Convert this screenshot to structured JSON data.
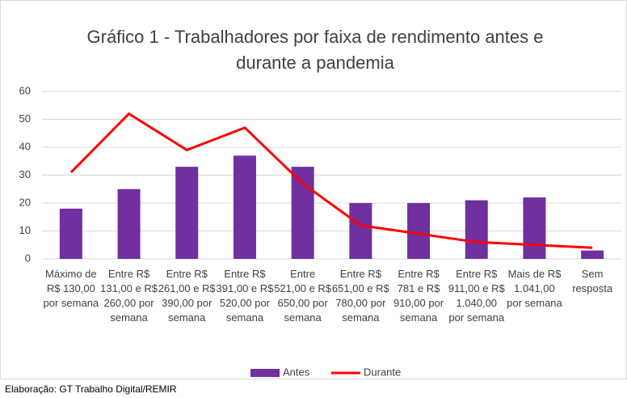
{
  "chart_data": {
    "type": "bar-line",
    "title": "Gráfico 1 - Trabalhadores por faixa de rendimento antes e durante a pandemia",
    "categories": [
      "Máximo de R$ 130,00 por semana",
      "Entre R$ 131,00 e R$ 260,00 por semana",
      "Entre R$ 261,00 e R$ 390,00 por semana",
      "Entre R$ 391,00 e R$ 520,00 por semana",
      "Entre 521,00 e R$ 650,00 por semana",
      "Entre R$ 651,00 e R$ 780,00 por semana",
      "Entre R$ 781 e R$ 910,00 por semana",
      "Entre R$ 911,00 e R$ 1.040,00 por semana",
      "Mais de R$ 1.041,00 por semana",
      "Sem resposta"
    ],
    "series": [
      {
        "name": "Antes",
        "type": "bar",
        "color": "#7030a0",
        "values": [
          18,
          25,
          33,
          37,
          33,
          20,
          20,
          21,
          22,
          3
        ]
      },
      {
        "name": "Durante",
        "type": "line",
        "color": "#ff0000",
        "values": [
          31,
          52,
          39,
          47,
          27,
          12,
          9,
          6,
          5,
          4
        ]
      }
    ],
    "ylim": [
      0,
      60
    ],
    "yticks": [
      0,
      10,
      20,
      30,
      40,
      50,
      60
    ],
    "grid": true,
    "legend": "bottom",
    "source": "Elaboração: GT Trabalho Digital/REMIR"
  }
}
